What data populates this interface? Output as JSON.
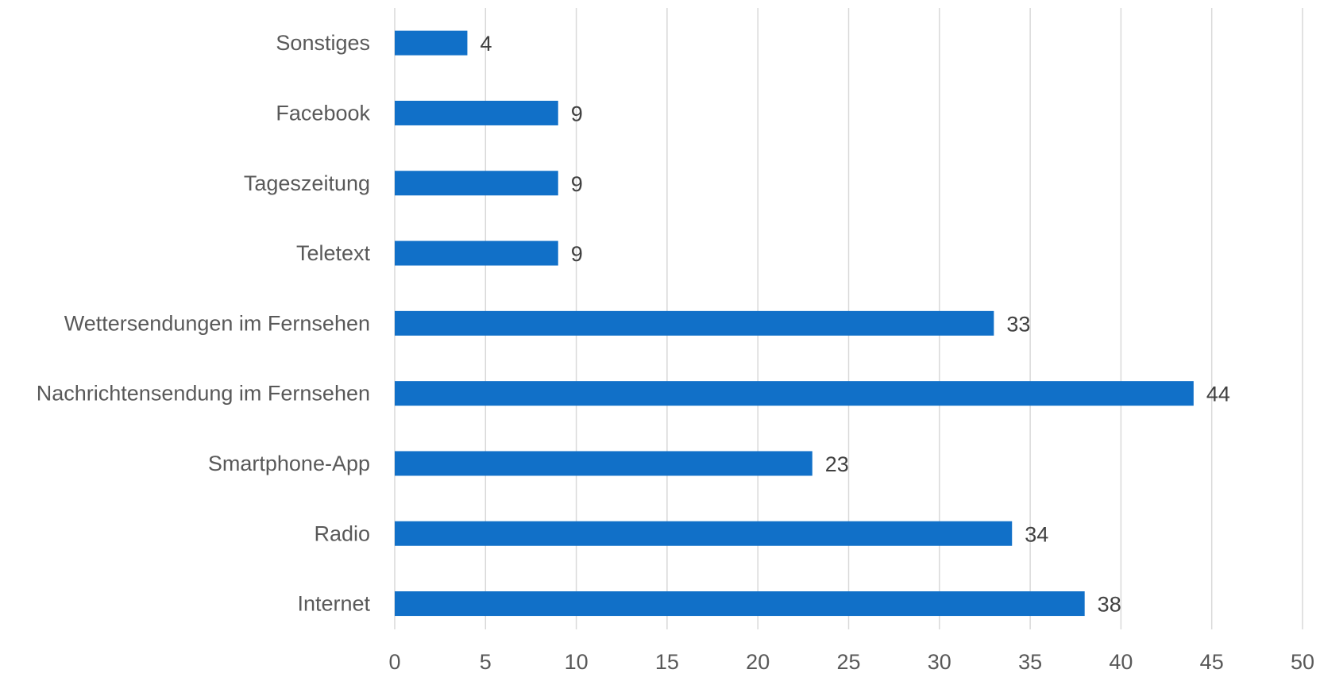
{
  "chart_data": {
    "type": "bar",
    "orientation": "horizontal",
    "title": "",
    "xlabel": "",
    "ylabel": "",
    "categories": [
      "Sonstiges",
      "Facebook",
      "Tageszeitung",
      "Teletext",
      "Wettersendungen im Fernsehen",
      "Nachrichtensendung im Fernsehen",
      "Smartphone-App",
      "Radio",
      "Internet"
    ],
    "values": [
      4,
      9,
      9,
      9,
      33,
      44,
      23,
      34,
      38
    ],
    "xlim": [
      0,
      50
    ],
    "xticks": [
      0,
      5,
      10,
      15,
      20,
      25,
      30,
      35,
      40,
      45,
      50
    ],
    "grid": "vertical",
    "legend": "none",
    "bar_color": "#1170C8",
    "grid_color": "#D9D9D9",
    "data_labels": true
  }
}
